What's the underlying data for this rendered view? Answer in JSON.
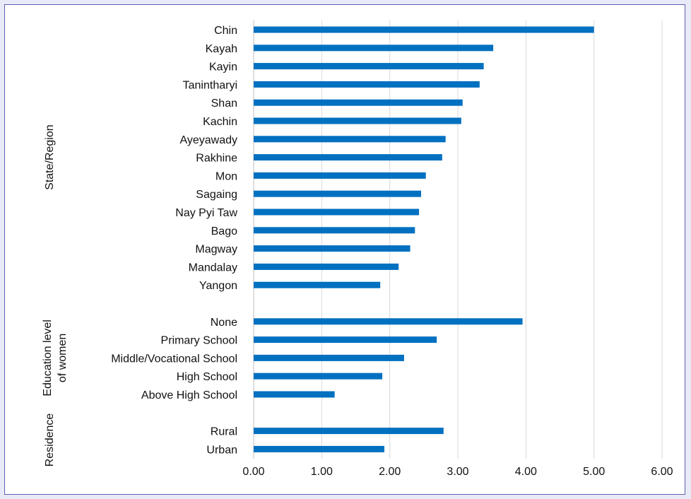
{
  "chart_data": {
    "type": "bar",
    "orientation": "horizontal",
    "xlim": [
      0,
      6
    ],
    "x_ticks": [
      "0.00",
      "1.00",
      "2.00",
      "3.00",
      "4.00",
      "5.00",
      "6.00"
    ],
    "grid": true,
    "bar_color": "#0070c0",
    "groups": [
      {
        "label": "State/Region",
        "categories": [
          "Chin",
          "Kayah",
          "Kayin",
          "Tanintharyi",
          "Shan",
          "Kachin",
          "Ayeyawady",
          "Rakhine",
          "Mon",
          "Sagaing",
          "Nay Pyi Taw",
          "Bago",
          "Magway",
          "Mandalay",
          "Yangon"
        ],
        "values": [
          5.0,
          3.52,
          3.38,
          3.32,
          3.07,
          3.05,
          2.82,
          2.77,
          2.53,
          2.46,
          2.43,
          2.37,
          2.3,
          2.13,
          1.86
        ]
      },
      {
        "label": "Education level of women",
        "label_lines": [
          "Education level",
          "of women"
        ],
        "categories": [
          "None",
          "Primary School",
          "Middle/Vocational School",
          "High School",
          "Above High School"
        ],
        "values": [
          3.95,
          2.69,
          2.21,
          1.89,
          1.19
        ]
      },
      {
        "label": "Residence",
        "categories": [
          "Rural",
          "Urban"
        ],
        "values": [
          2.79,
          1.92
        ]
      }
    ]
  }
}
